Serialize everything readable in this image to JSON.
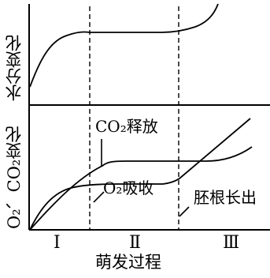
{
  "top_panel": {
    "ylabel": "水分变化"
  },
  "bottom_panel": {
    "ylabel": "O₂、CO₂变化",
    "annotations": {
      "co2": "CO₂释放",
      "o2": "O₂吸收",
      "radicle": "胚根长出"
    }
  },
  "stages": [
    "Ⅰ",
    "Ⅱ",
    "Ⅲ"
  ],
  "xlabel": "萌发过程",
  "colors": {
    "stroke": "#000000",
    "background": "#ffffff"
  }
}
